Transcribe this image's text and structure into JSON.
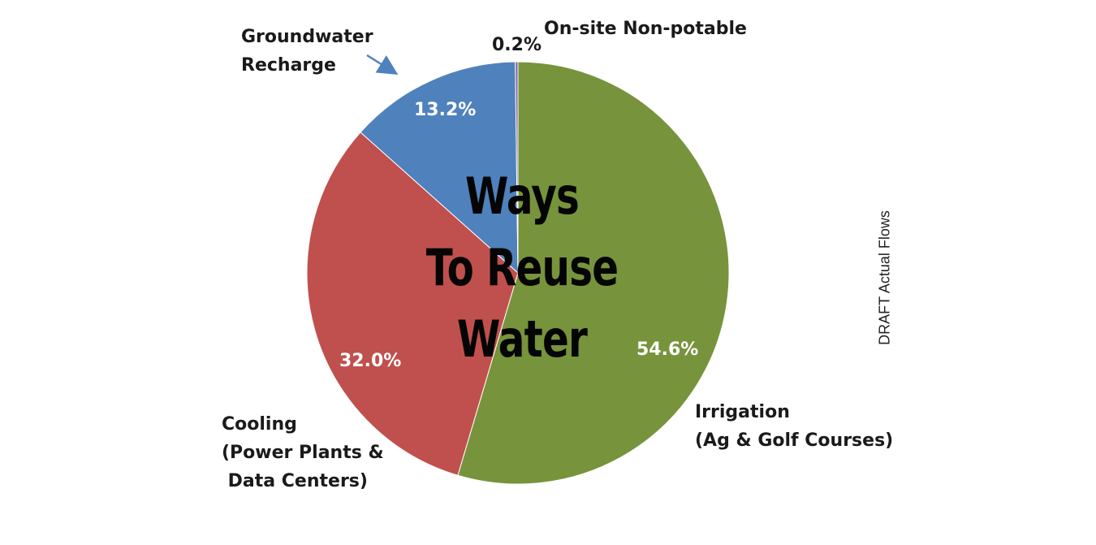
{
  "chart_data": {
    "type": "pie",
    "title": [
      "Ways",
      "To Reuse",
      "Water"
    ],
    "side_note": "DRAFT Actual Flows",
    "slices": [
      {
        "label_lines": [
          "Irrigation",
          "(Ag & Golf Courses)"
        ],
        "value": 54.6,
        "value_label": "54.6%",
        "color": "#77933c"
      },
      {
        "label_lines": [
          "Cooling",
          "(Power Plants &",
          " Data Centers)"
        ],
        "value": 32.0,
        "value_label": "32.0%",
        "color": "#c0504d"
      },
      {
        "label_lines": [
          "Groundwater",
          "Recharge"
        ],
        "value": 13.2,
        "value_label": "13.2%",
        "color": "#4f81bd"
      },
      {
        "label_lines": [
          "On-site Non-potable"
        ],
        "value": 0.2,
        "value_label": "0.2%",
        "color": "#8064a2"
      }
    ]
  }
}
